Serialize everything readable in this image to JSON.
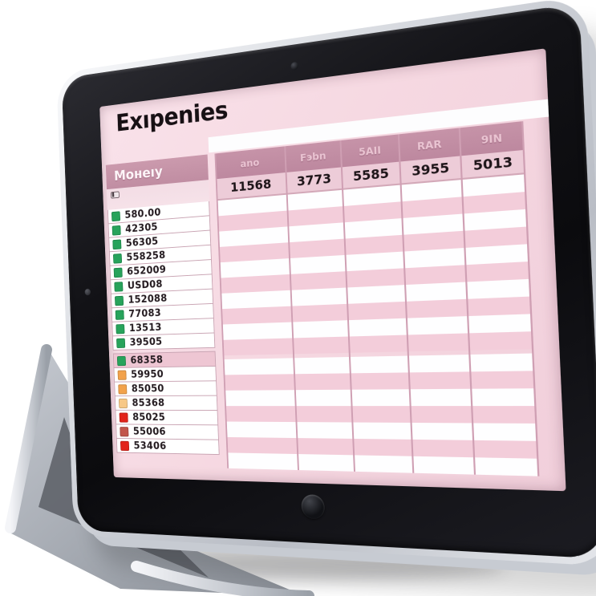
{
  "app": {
    "title": "Exıpenies"
  },
  "sheet": {
    "money_header": "Moнeıy",
    "columns": [
      {
        "header": "ano",
        "value": "11568"
      },
      {
        "header": "Fэbn",
        "value": "3773"
      },
      {
        "header": "5AII",
        "value": "5585"
      },
      {
        "header": "RAR",
        "value": "3955"
      },
      {
        "header": "9IN",
        "value": "5013"
      }
    ],
    "rows": [
      {
        "value": "580.00",
        "marker": "green",
        "highlight": false
      },
      {
        "value": "42305",
        "marker": "green",
        "highlight": false
      },
      {
        "value": "56305",
        "marker": "green",
        "highlight": false
      },
      {
        "value": "558258",
        "marker": "green",
        "highlight": false
      },
      {
        "value": "652009",
        "marker": "green",
        "highlight": false
      },
      {
        "value": "USD08",
        "marker": "green",
        "highlight": false
      },
      {
        "value": "152088",
        "marker": "green",
        "highlight": false
      },
      {
        "value": "77083",
        "marker": "green",
        "highlight": false
      },
      {
        "value": "13513",
        "marker": "green",
        "highlight": false
      },
      {
        "value": "39505",
        "marker": "green",
        "highlight": false
      },
      {
        "value": "68358",
        "marker": "green",
        "highlight": true
      },
      {
        "value": "59950",
        "marker": "orange",
        "highlight": false
      },
      {
        "value": "85050",
        "marker": "orange",
        "highlight": false
      },
      {
        "value": "85368",
        "marker": "light-orange",
        "highlight": false
      },
      {
        "value": "85025",
        "marker": "red",
        "highlight": false
      },
      {
        "value": "55006",
        "marker": "brick",
        "highlight": false
      },
      {
        "value": "53406",
        "marker": "red",
        "highlight": false
      }
    ]
  },
  "colors": {
    "markers": {
      "green": "#27a35b",
      "orange": "#f2a24b",
      "light-orange": "#f7c887",
      "red": "#e2231a",
      "brick": "#c2554b"
    },
    "theme": {
      "sheet_pink": "#f6d9e2",
      "header_mauve": "#c08da2",
      "stripe_pink": "#f3cdda",
      "divider": "#cf9fb3",
      "bezel_black": "#121216",
      "rim_silver": "#d4d7dd"
    }
  }
}
